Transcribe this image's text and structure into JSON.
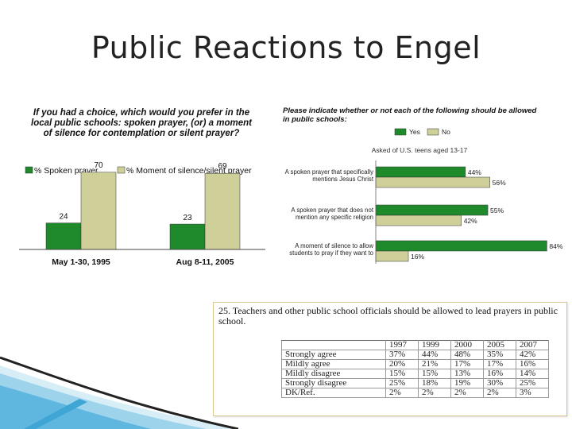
{
  "title": "Public Reactions to Engel",
  "colors": {
    "dark_green": "#1f8a2c",
    "tan": "#cfcf9a"
  },
  "chart_data": [
    {
      "type": "bar",
      "title": "If you had a choice, which would you prefer in the local public schools: spoken prayer, (or) a moment of silence for contemplation or silent prayer?",
      "title_lines": [
        "If you had a choice, which would you prefer in the",
        "local public schools: spoken prayer, (or) a moment",
        "of silence for contemplation or silent prayer?"
      ],
      "categories": [
        "May 1-30, 1995",
        "Aug 8-11, 2005"
      ],
      "series": [
        {
          "name": "% Spoken prayer",
          "legend": "% Spoken prayer",
          "values": [
            24,
            23
          ],
          "color": "#1f8a2c"
        },
        {
          "name": "% Moment of silence/silent prayer",
          "legend": "% Moment of silence/silent prayer",
          "values": [
            70,
            69
          ],
          "color": "#cfcf9a"
        }
      ],
      "ylim": [
        0,
        85
      ]
    },
    {
      "type": "bar",
      "orientation": "horizontal",
      "title": "Please indicate whether or not each of the following should be allowed in public schools:",
      "title_lines": [
        "Please indicate whether or not each of the following should be allowed",
        "in public schools:"
      ],
      "subtitle": "Asked of U.S. teens aged 13-17",
      "legend": [
        "Yes",
        "No"
      ],
      "categories": [
        [
          "A spoken prayer that specifically",
          "mentions Jesus Christ"
        ],
        [
          "A spoken prayer that does not",
          "mention any specific religion"
        ],
        [
          "A moment of silence to allow",
          "students to pray if they want to"
        ]
      ],
      "series": [
        {
          "name": "Yes",
          "values": [
            44,
            55,
            84
          ],
          "color": "#1f8a2c"
        },
        {
          "name": "No",
          "values": [
            56,
            42,
            16
          ],
          "color": "#cfcf9a"
        }
      ],
      "xlim": [
        0,
        85
      ]
    }
  ],
  "survey": {
    "question": "25.  Teachers and other public school officials should be allowed to lead prayers in public school.",
    "years": [
      "1997",
      "1999",
      "2000",
      "2005",
      "2007"
    ],
    "rows": [
      {
        "label": "Strongly agree",
        "values": [
          "37%",
          "44%",
          "48%",
          "35%",
          "42%"
        ]
      },
      {
        "label": "Mildly agree",
        "values": [
          "20%",
          "21%",
          "17%",
          "17%",
          "16%"
        ]
      },
      {
        "label": "Mildly disagree",
        "values": [
          "15%",
          "15%",
          "13%",
          "16%",
          "14%"
        ]
      },
      {
        "label": "Strongly disagree",
        "values": [
          "25%",
          "18%",
          "19%",
          "30%",
          "25%"
        ]
      },
      {
        "label": "DK/Ref.",
        "values": [
          "2%",
          "2%",
          "2%",
          "2%",
          "3%"
        ]
      }
    ]
  }
}
